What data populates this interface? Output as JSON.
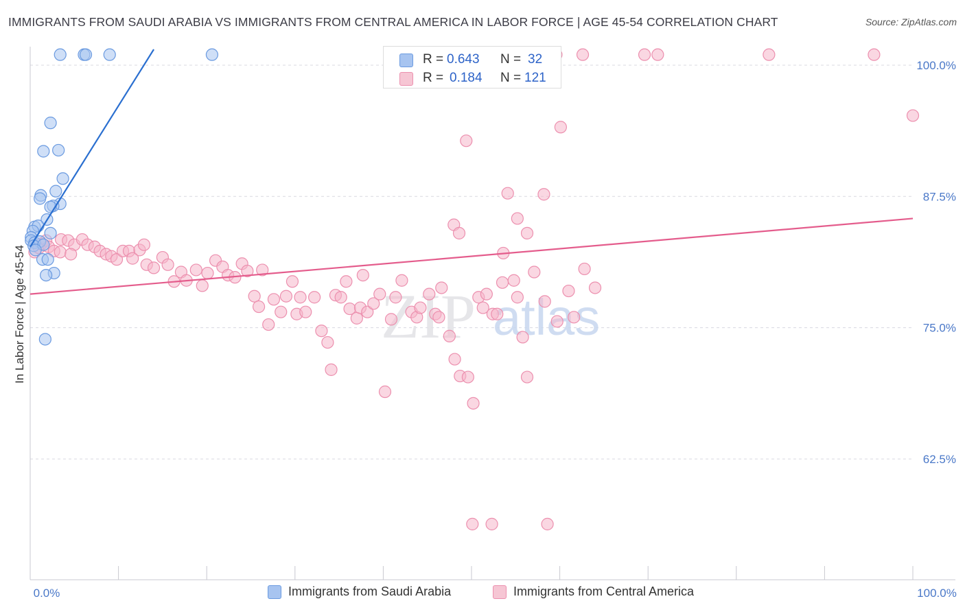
{
  "title": "IMMIGRANTS FROM SAUDI ARABIA VS IMMIGRANTS FROM CENTRAL AMERICA IN LABOR FORCE | AGE 45-54 CORRELATION CHART",
  "source": "Source: ZipAtlas.com",
  "watermark": {
    "zip": "ZIP",
    "atlas": "atlas"
  },
  "colors": {
    "blue_fill": "#a7c4f0",
    "blue_stroke": "#6a9ae0",
    "blue_line": "#2a6fd0",
    "pink_fill": "#f6b7ca",
    "pink_stroke": "#ec8fae",
    "pink_line": "#e45c8c",
    "axis_label": "#4a78c8",
    "grid": "#d8d8e0"
  },
  "stats": {
    "series1": {
      "r_label": "R =",
      "r_value": "0.643",
      "n_label": "N =",
      "n_value": "32"
    },
    "series2": {
      "r_label": "R =",
      "r_value": "0.184",
      "n_label": "N =",
      "n_value": "121"
    }
  },
  "legend": {
    "series1": "Immigrants from Saudi Arabia",
    "series2": "Immigrants from Central America"
  },
  "chart_data": {
    "type": "scatter",
    "title": "IMMIGRANTS FROM SAUDI ARABIA VS IMMIGRANTS FROM CENTRAL AMERICA IN LABOR FORCE | AGE 45-54 CORRELATION CHART",
    "xlabel": "",
    "ylabel": "In Labor Force | Age 45-54",
    "xlim": [
      0,
      100
    ],
    "ylim": [
      51.0,
      101.5
    ],
    "x_tick_labels": [
      "0.0%",
      "100.0%"
    ],
    "y_ticks": [
      62.5,
      75.0,
      87.5,
      100.0
    ],
    "y_tick_labels": [
      "62.5%",
      "75.0%",
      "87.5%",
      "100.0%"
    ],
    "grid": true,
    "series": [
      {
        "name": "Immigrants from Saudi Arabia",
        "trend": {
          "x": [
            0,
            14
          ],
          "y": [
            82.7,
            101.5
          ]
        },
        "points": [
          [
            3.4,
            101.0
          ],
          [
            6.1,
            101.0
          ],
          [
            6.3,
            101.0
          ],
          [
            9.0,
            101.0
          ],
          [
            20.6,
            101.0
          ],
          [
            2.3,
            94.5
          ],
          [
            1.5,
            91.8
          ],
          [
            3.2,
            91.9
          ],
          [
            3.7,
            89.2
          ],
          [
            2.9,
            88.0
          ],
          [
            1.2,
            87.6
          ],
          [
            1.1,
            87.3
          ],
          [
            3.4,
            86.8
          ],
          [
            2.6,
            86.6
          ],
          [
            2.3,
            86.5
          ],
          [
            1.9,
            85.3
          ],
          [
            0.5,
            84.6
          ],
          [
            0.9,
            84.7
          ],
          [
            0.3,
            84.2
          ],
          [
            2.3,
            84.0
          ],
          [
            0.1,
            83.6
          ],
          [
            0.1,
            83.3
          ],
          [
            0.5,
            83.1
          ],
          [
            1.1,
            83.2
          ],
          [
            0.4,
            82.8
          ],
          [
            1.5,
            82.9
          ],
          [
            0.6,
            82.4
          ],
          [
            1.4,
            81.5
          ],
          [
            2.0,
            81.5
          ],
          [
            2.7,
            80.2
          ],
          [
            1.8,
            80.0
          ],
          [
            1.7,
            73.9
          ]
        ]
      },
      {
        "name": "Immigrants from Central America",
        "trend": {
          "x": [
            0,
            100
          ],
          "y": [
            78.2,
            85.4
          ]
        },
        "points": [
          [
            47.6,
            101.0
          ],
          [
            48.3,
            101.0
          ],
          [
            56.8,
            101.0
          ],
          [
            59.6,
            101.0
          ],
          [
            62.6,
            101.0
          ],
          [
            69.6,
            101.0
          ],
          [
            71.1,
            101.0
          ],
          [
            83.7,
            101.0
          ],
          [
            95.6,
            101.0
          ],
          [
            100.0,
            95.2
          ],
          [
            60.1,
            94.1
          ],
          [
            49.4,
            92.8
          ],
          [
            54.1,
            87.8
          ],
          [
            58.2,
            87.7
          ],
          [
            55.2,
            85.4
          ],
          [
            48.0,
            84.8
          ],
          [
            48.6,
            84.0
          ],
          [
            56.3,
            84.0
          ],
          [
            53.6,
            82.1
          ],
          [
            0.5,
            82.2
          ],
          [
            1.0,
            82.6
          ],
          [
            1.3,
            83.0
          ],
          [
            1.8,
            83.3
          ],
          [
            2.1,
            82.7
          ],
          [
            2.7,
            82.3
          ],
          [
            3.5,
            83.4
          ],
          [
            4.3,
            83.3
          ],
          [
            5.0,
            82.9
          ],
          [
            5.9,
            83.4
          ],
          [
            6.5,
            82.9
          ],
          [
            7.3,
            82.7
          ],
          [
            7.9,
            82.3
          ],
          [
            8.6,
            82.0
          ],
          [
            9.2,
            81.8
          ],
          [
            9.8,
            81.5
          ],
          [
            10.5,
            82.3
          ],
          [
            11.2,
            82.3
          ],
          [
            11.6,
            81.6
          ],
          [
            12.4,
            82.4
          ],
          [
            12.9,
            82.9
          ],
          [
            3.4,
            82.2
          ],
          [
            4.6,
            82.0
          ],
          [
            13.2,
            81.0
          ],
          [
            14.0,
            80.7
          ],
          [
            15.0,
            81.7
          ],
          [
            15.6,
            81.0
          ],
          [
            16.3,
            79.4
          ],
          [
            17.1,
            80.3
          ],
          [
            17.7,
            79.5
          ],
          [
            18.8,
            80.5
          ],
          [
            19.5,
            79.0
          ],
          [
            20.1,
            80.2
          ],
          [
            21.0,
            81.4
          ],
          [
            21.8,
            80.8
          ],
          [
            22.4,
            80.0
          ],
          [
            23.2,
            79.8
          ],
          [
            24.0,
            81.1
          ],
          [
            24.6,
            80.4
          ],
          [
            25.4,
            78.0
          ],
          [
            25.9,
            77.0
          ],
          [
            26.3,
            80.5
          ],
          [
            27.0,
            75.3
          ],
          [
            27.6,
            77.7
          ],
          [
            28.4,
            76.5
          ],
          [
            29.0,
            78.0
          ],
          [
            29.7,
            79.4
          ],
          [
            30.2,
            76.3
          ],
          [
            30.6,
            77.9
          ],
          [
            31.2,
            76.5
          ],
          [
            32.2,
            77.9
          ],
          [
            33.0,
            74.7
          ],
          [
            33.7,
            73.6
          ],
          [
            34.1,
            71.0
          ],
          [
            34.6,
            78.1
          ],
          [
            35.2,
            77.9
          ],
          [
            35.8,
            79.4
          ],
          [
            36.2,
            76.8
          ],
          [
            37.0,
            75.9
          ],
          [
            37.4,
            76.9
          ],
          [
            37.7,
            80.0
          ],
          [
            38.2,
            76.5
          ],
          [
            38.9,
            77.3
          ],
          [
            39.6,
            78.2
          ],
          [
            40.2,
            68.9
          ],
          [
            40.9,
            75.8
          ],
          [
            41.4,
            77.9
          ],
          [
            42.1,
            79.5
          ],
          [
            43.2,
            76.5
          ],
          [
            43.8,
            76.0
          ],
          [
            44.2,
            76.9
          ],
          [
            45.2,
            78.2
          ],
          [
            45.9,
            76.3
          ],
          [
            46.3,
            76.0
          ],
          [
            46.6,
            78.8
          ],
          [
            47.5,
            74.2
          ],
          [
            48.1,
            72.0
          ],
          [
            48.7,
            70.4
          ],
          [
            49.6,
            70.3
          ],
          [
            50.2,
            67.8
          ],
          [
            50.8,
            77.9
          ],
          [
            51.3,
            76.9
          ],
          [
            51.7,
            78.2
          ],
          [
            52.4,
            76.3
          ],
          [
            52.9,
            76.3
          ],
          [
            53.5,
            79.3
          ],
          [
            54.8,
            79.5
          ],
          [
            55.2,
            77.9
          ],
          [
            55.8,
            74.1
          ],
          [
            56.3,
            70.3
          ],
          [
            57.1,
            80.3
          ],
          [
            58.3,
            77.5
          ],
          [
            59.7,
            75.6
          ],
          [
            61.0,
            78.5
          ],
          [
            61.6,
            76.0
          ],
          [
            62.8,
            80.6
          ],
          [
            64.0,
            78.8
          ],
          [
            50.1,
            56.3
          ],
          [
            52.3,
            56.3
          ],
          [
            58.6,
            56.3
          ]
        ]
      }
    ]
  },
  "axes": {
    "ylabel": "In Labor Force | Age 45-54",
    "x_left": "0.0%",
    "x_right": "100.0%"
  }
}
